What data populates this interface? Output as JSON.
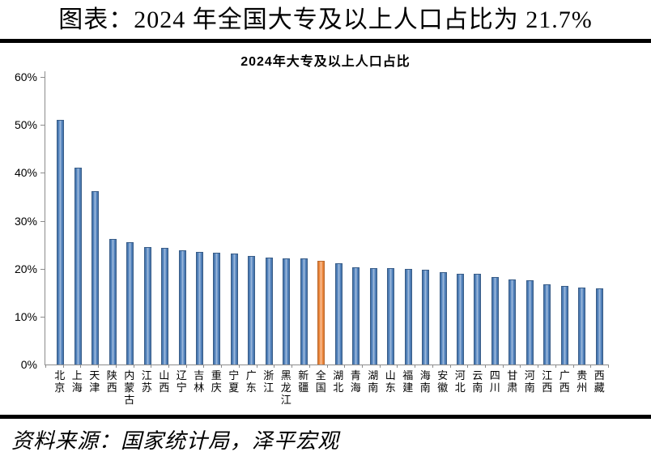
{
  "doc": {
    "title": "图表：2024 年全国大专及以上人口占比为 21.7%",
    "source": "资料来源：国家统计局，泽平宏观"
  },
  "colors": {
    "bar_blue": "#4F81BD",
    "bar_highlight_orange": "#F0883C",
    "axis_gray": "#8C8C8C",
    "rule_black": "#000000"
  },
  "chart_data": {
    "type": "bar",
    "title": "2024年大专及以上人口占比",
    "xlabel": "",
    "ylabel": "",
    "ylim": [
      0,
      60
    ],
    "ytick_step": 10,
    "ytick_suffix": "%",
    "grid": false,
    "legend": false,
    "highlight_category": "全国",
    "highlight_index": 15,
    "categories": [
      "北京",
      "上海",
      "天津",
      "陕西",
      "内蒙古",
      "江苏",
      "山西",
      "辽宁",
      "吉林",
      "重庆",
      "宁夏",
      "广东",
      "浙江",
      "黑龙江",
      "新疆",
      "全国",
      "湖北",
      "青海",
      "湖南",
      "山东",
      "福建",
      "海南",
      "安徽",
      "河北",
      "云南",
      "四川",
      "甘肃",
      "河南",
      "江西",
      "广西",
      "贵州",
      "西藏"
    ],
    "values": [
      51.0,
      41.0,
      36.2,
      26.2,
      25.5,
      24.5,
      24.4,
      23.9,
      23.5,
      23.3,
      23.2,
      22.7,
      22.3,
      22.2,
      22.2,
      21.7,
      21.1,
      20.2,
      20.1,
      20.1,
      19.9,
      19.7,
      19.2,
      19.0,
      18.9,
      18.2,
      17.8,
      17.6,
      16.7,
      16.4,
      16.0,
      15.9
    ]
  }
}
